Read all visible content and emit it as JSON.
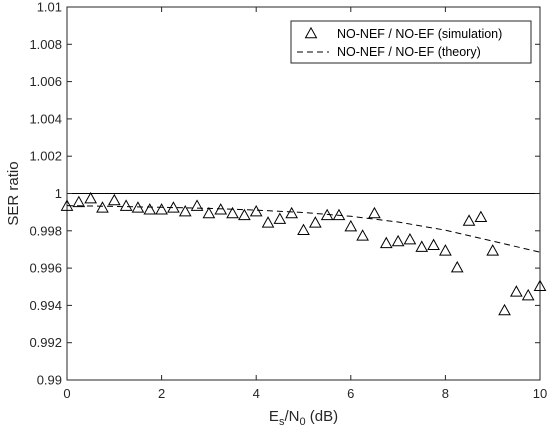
{
  "chart_data": {
    "type": "scatter",
    "xlabel": {
      "base": "E",
      "sub1": "s",
      "mid": "/N",
      "sub2": "0",
      "tail": " (dB)"
    },
    "ylabel": "SER ratio",
    "xlim": [
      0,
      10
    ],
    "ylim": [
      0.99,
      1.01
    ],
    "xticks": [
      "0",
      "2",
      "4",
      "6",
      "8",
      "10"
    ],
    "xtick_values": [
      0,
      2,
      4,
      6,
      8,
      10
    ],
    "yticks": [
      "0.99",
      "0.992",
      "0.994",
      "0.996",
      "0.998",
      "1",
      "1.002",
      "1.004",
      "1.006",
      "1.008",
      "1.01"
    ],
    "ytick_values": [
      0.99,
      0.992,
      0.994,
      0.996,
      0.998,
      1.0,
      1.002,
      1.004,
      1.006,
      1.008,
      1.01
    ],
    "grid": false,
    "legend_position": "top-right",
    "reference_line": {
      "y": 1.0,
      "color": "#000000"
    },
    "series": [
      {
        "name": "NO-NEF / NO-EF (simulation)",
        "marker": "triangle",
        "color": "#000000",
        "x": [
          0,
          0.25,
          0.5,
          0.75,
          1.0,
          1.25,
          1.5,
          1.75,
          2.0,
          2.25,
          2.5,
          2.75,
          3.0,
          3.25,
          3.5,
          3.75,
          4.0,
          4.25,
          4.5,
          4.75,
          5.0,
          5.25,
          5.5,
          5.75,
          6.0,
          6.25,
          6.5,
          6.75,
          7.0,
          7.25,
          7.5,
          7.75,
          8.0,
          8.25,
          8.5,
          8.75,
          9.0,
          9.25,
          9.5,
          9.75,
          10.0
        ],
        "y": [
          0.9993,
          0.9995,
          0.9997,
          0.9992,
          0.9996,
          0.9993,
          0.9992,
          0.9991,
          0.9991,
          0.9992,
          0.999,
          0.9993,
          0.9989,
          0.9991,
          0.9989,
          0.9988,
          0.999,
          0.9984,
          0.9986,
          0.9989,
          0.998,
          0.9984,
          0.9988,
          0.9988,
          0.9982,
          0.9977,
          0.9989,
          0.9973,
          0.9974,
          0.9975,
          0.9971,
          0.9972,
          0.9969,
          0.996,
          0.9985,
          0.9987,
          0.9969,
          0.9937,
          0.9947,
          0.9945,
          0.995
        ]
      },
      {
        "name": "NO-NEF / NO-EF (theory)",
        "line": "dashed",
        "color": "#000000",
        "x": [
          0,
          1,
          2,
          3,
          4,
          5,
          6,
          7,
          8,
          9,
          10
        ],
        "y": [
          0.99935,
          0.99931,
          0.99926,
          0.9992,
          0.99911,
          0.99898,
          0.99878,
          0.99847,
          0.99803,
          0.99745,
          0.99685
        ]
      }
    ]
  }
}
